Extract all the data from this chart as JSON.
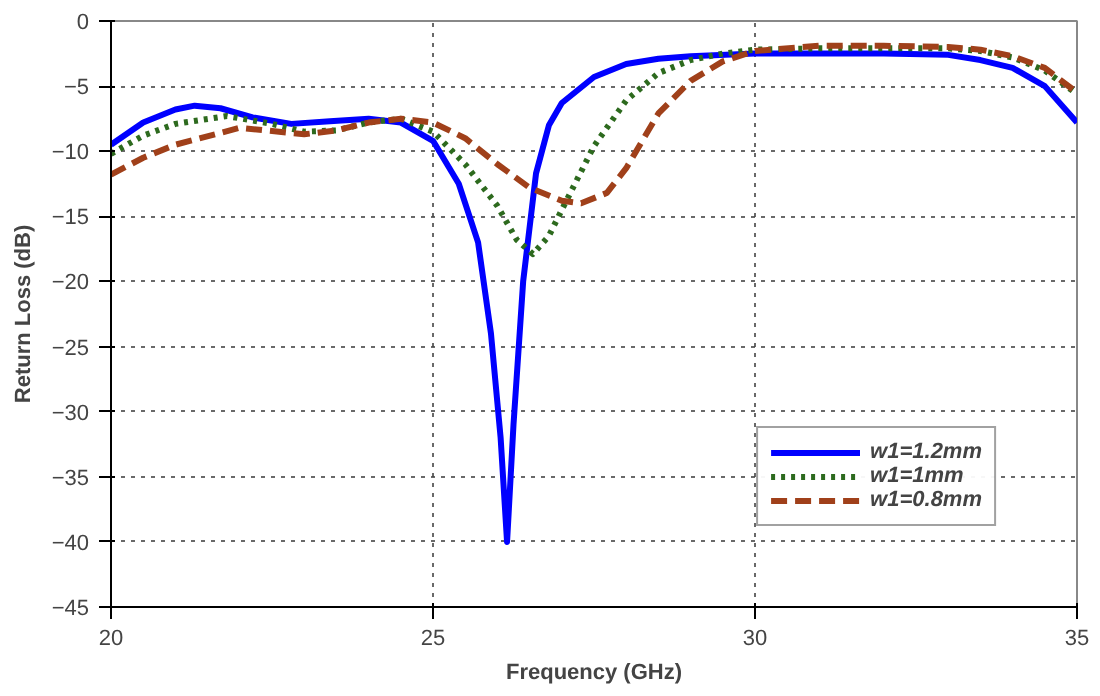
{
  "chart_data": {
    "type": "line",
    "xlabel": "Frequency (GHz)",
    "ylabel": "Return Loss (dB)",
    "xlim": [
      20,
      35
    ],
    "ylim": [
      -45,
      0
    ],
    "xticks": [
      20,
      25,
      30,
      35
    ],
    "yticks": [
      -45,
      -40,
      -35,
      -30,
      -25,
      -20,
      -15,
      -10,
      -5,
      0
    ],
    "grid": true,
    "legend": "bottom right",
    "series": [
      {
        "name": "w1=1.2mm",
        "color": "#0000ff",
        "line_style": "solid",
        "x": [
          20,
          20.5,
          21,
          21.3,
          21.7,
          22.2,
          22.8,
          23.4,
          24,
          24.5,
          25,
          25.4,
          25.7,
          25.9,
          26.05,
          26.15,
          26.25,
          26.4,
          26.6,
          26.8,
          27,
          27.5,
          28,
          28.5,
          29,
          30,
          31,
          32,
          33,
          33.5,
          34,
          34.5,
          35
        ],
        "values": [
          -9.5,
          -7.8,
          -6.8,
          -6.5,
          -6.7,
          -7.4,
          -7.9,
          -7.7,
          -7.5,
          -7.8,
          -9.2,
          -12.5,
          -17,
          -24,
          -32,
          -40,
          -31,
          -20,
          -11.7,
          -8,
          -6.3,
          -4.3,
          -3.3,
          -2.9,
          -2.7,
          -2.5,
          -2.5,
          -2.5,
          -2.6,
          -3,
          -3.6,
          -5,
          -7.8
        ]
      },
      {
        "name": "w1=1mm",
        "color": "#2d6a1e",
        "line_style": "dotted",
        "x": [
          20,
          20.5,
          21,
          21.8,
          22.5,
          23,
          23.5,
          24,
          24.5,
          25,
          25.5,
          26,
          26.3,
          26.55,
          26.8,
          27,
          27.5,
          28,
          28.5,
          29,
          29.5,
          30,
          31,
          32,
          33,
          33.5,
          34,
          34.5,
          35
        ],
        "values": [
          -10.2,
          -8.8,
          -7.9,
          -7.3,
          -7.9,
          -8.5,
          -8.4,
          -7.8,
          -7.5,
          -8.5,
          -11,
          -14.2,
          -16.8,
          -17.9,
          -16.5,
          -14.5,
          -9.6,
          -6.1,
          -4,
          -3,
          -2.5,
          -2.2,
          -2.1,
          -2.1,
          -2.1,
          -2.3,
          -2.8,
          -3.8,
          -5.6
        ]
      },
      {
        "name": "w1=0.8mm",
        "color": "#a0401a",
        "line_style": "dashed",
        "x": [
          20,
          20.5,
          21,
          22,
          23,
          23.5,
          24,
          24.5,
          25,
          25.5,
          26,
          26.5,
          27,
          27.3,
          27.7,
          28,
          28.5,
          29,
          29.5,
          30,
          31,
          32,
          33,
          33.5,
          34,
          34.5,
          35
        ],
        "values": [
          -11.8,
          -10.5,
          -9.5,
          -8.2,
          -8.7,
          -8.4,
          -7.8,
          -7.5,
          -7.8,
          -9,
          -11,
          -12.8,
          -13.8,
          -14,
          -13.2,
          -11.3,
          -7.1,
          -4.6,
          -3.1,
          -2.3,
          -1.9,
          -1.9,
          -2,
          -2.2,
          -2.7,
          -3.6,
          -5.5
        ]
      }
    ]
  }
}
